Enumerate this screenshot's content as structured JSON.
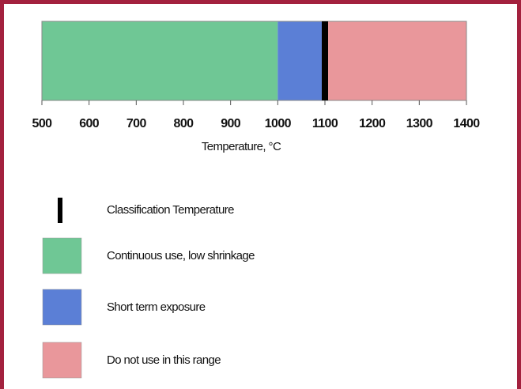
{
  "chart_data": {
    "type": "range_bar",
    "xlabel": "Temperature, °C",
    "xlim": [
      500,
      1400
    ],
    "xticks": [
      500,
      600,
      700,
      800,
      900,
      1000,
      1100,
      1200,
      1300,
      1400
    ],
    "marker": {
      "name": "Classification Temperature",
      "value": 1100,
      "color": "#000000"
    },
    "segments": [
      {
        "name": "Continuous use, low shrinkage",
        "color": "#6fc795",
        "start": 500,
        "end": 1000
      },
      {
        "name": "Short term exposure",
        "color": "#5b7fd6",
        "start": 1000,
        "end": 1100
      },
      {
        "name": "Do not use in this range",
        "color": "#e9979b",
        "start": 1100,
        "end": 1400
      }
    ]
  }
}
